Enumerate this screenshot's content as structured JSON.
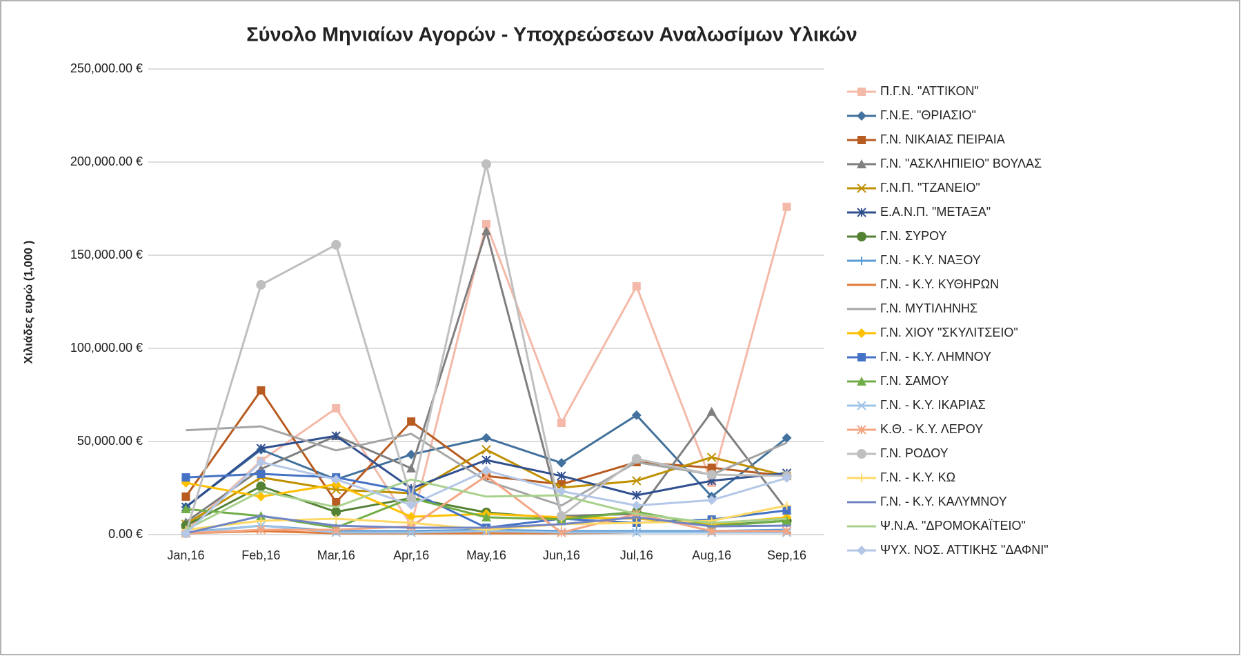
{
  "chart_data": {
    "type": "line",
    "title": "Σύνολο Μηνιαίων Αγορών - Υποχρεώσεων Αναλωσίμων Υλικών",
    "y_label": "Χιλιάδες ευρώ (1,000 )",
    "categories": [
      "Jan,16",
      "Feb,16",
      "Mar,16",
      "Apr,16",
      "May,16",
      "Jun,16",
      "Jul,16",
      "Aug,16",
      "Sep,16"
    ],
    "ylim": [
      0,
      250000
    ],
    "yticks": [
      {
        "value": 0,
        "label": "0.00 €"
      },
      {
        "value": 50000,
        "label": "50,000.00 €"
      },
      {
        "value": 100000,
        "label": "100,000.00 €"
      },
      {
        "value": 150000,
        "label": "150,000.00 €"
      },
      {
        "value": 200000,
        "label": "200,000.00 €"
      },
      {
        "value": 250000,
        "label": "250,000.00 €"
      }
    ],
    "grid": true,
    "legend": "right",
    "series": [
      {
        "name": "Π.Γ.Ν. \"ΑΤΤΙΚΟΝ\"",
        "color": "#f4b9a8",
        "marker": "square",
        "values": [
          2000,
          39600,
          67800,
          5000,
          166700,
          60000,
          133300,
          27800,
          176000
        ]
      },
      {
        "name": "Γ.Ν.Ε. \"ΘΡΙΑΣΙΟ\"",
        "color": "#41719c",
        "marker": "diamond",
        "values": [
          14800,
          45600,
          29600,
          43000,
          51900,
          38500,
          64100,
          20400,
          51900
        ]
      },
      {
        "name": "Γ.Ν. ΝΙΚΑΙΑΣ ΠΕΙΡΑΙΑ",
        "color": "#b85b20",
        "marker": "square",
        "values": [
          20400,
          77400,
          17400,
          60700,
          31500,
          27000,
          38900,
          35900,
          31500
        ]
      },
      {
        "name": "Γ.Ν. \"ΑΣΚΛΗΠΙΕΙΟ\" ΒΟΥΛΑΣ",
        "color": "#7f7f7f",
        "marker": "triangle",
        "values": [
          6700,
          35200,
          53000,
          35600,
          163000,
          10000,
          11100,
          66000,
          13000
        ]
      },
      {
        "name": "Γ.Ν.Π. \"ΤΖΑΝΕΙΟ\"",
        "color": "#bf9000",
        "marker": "x",
        "values": [
          5600,
          30700,
          24100,
          22200,
          45600,
          25200,
          28900,
          41500,
          31500
        ]
      },
      {
        "name": "Ε.Α.Ν.Π. \"ΜΕΤΑΞΑ\"",
        "color": "#2f4f8f",
        "marker": "star",
        "values": [
          14800,
          46300,
          53000,
          24800,
          40000,
          31500,
          21100,
          28900,
          33000
        ]
      },
      {
        "name": "Γ.Ν. ΣΥΡΟΥ",
        "color": "#548235",
        "marker": "circle",
        "values": [
          4800,
          25900,
          12200,
          19600,
          11900,
          8500,
          12200,
          4800,
          7400
        ]
      },
      {
        "name": "Γ.Ν. - Κ.Υ. ΝΑΞΟΥ",
        "color": "#5b9bd5",
        "marker": "plus",
        "values": [
          1100,
          4800,
          1900,
          1900,
          2600,
          1900,
          1900,
          1900,
          2600
        ]
      },
      {
        "name": "Γ.Ν. - Κ.Υ. ΚΥΘΗΡΩΝ",
        "color": "#e07b39",
        "marker": "dash",
        "values": [
          700,
          1900,
          700,
          700,
          700,
          700,
          1100,
          1100,
          1100
        ]
      },
      {
        "name": "Γ.Ν. ΜΥΤΙΛΗΝΗΣ",
        "color": "#a5a5a5",
        "marker": "none",
        "values": [
          56000,
          58100,
          45200,
          54100,
          28900,
          15600,
          38900,
          32200,
          49300
        ]
      },
      {
        "name": "Γ.Ν. ΧΙΟΥ \"ΣΚΥΛΙΤΣΕΙΟ\"",
        "color": "#ffc000",
        "marker": "diamond",
        "values": [
          27800,
          20400,
          27000,
          9600,
          11100,
          9300,
          8500,
          5600,
          9300
        ]
      },
      {
        "name": "Γ.Ν. - Κ.Υ. ΛΗΜΝΟΥ",
        "color": "#4472c4",
        "marker": "square",
        "values": [
          30700,
          32600,
          30700,
          23000,
          3700,
          8500,
          6300,
          8100,
          13000
        ]
      },
      {
        "name": "Γ.Ν. ΣΑΜΟΥ",
        "color": "#70ad47",
        "marker": "triangle",
        "values": [
          13700,
          10000,
          3700,
          19600,
          9300,
          8100,
          12200,
          4400,
          7400
        ]
      },
      {
        "name": "Γ.Ν. - Κ.Υ. ΙΚΑΡΙΑΣ",
        "color": "#9dc3e6",
        "marker": "x",
        "values": [
          700,
          4800,
          1100,
          1100,
          1900,
          1100,
          1100,
          1100,
          1100
        ]
      },
      {
        "name": "Κ.Θ. - Κ.Υ. ΛΕΡΟΥ",
        "color": "#f4a582",
        "marker": "star",
        "values": [
          700,
          2600,
          2600,
          4400,
          31500,
          1100,
          11100,
          1900,
          1900
        ]
      },
      {
        "name": "Γ.Ν. ΡΟΔΟΥ",
        "color": "#bfbfbf",
        "marker": "circle",
        "values": [
          700,
          134100,
          155600,
          19600,
          198900,
          10000,
          40700,
          32200,
          31500
        ]
      },
      {
        "name": "Γ.Ν. - Κ.Υ. ΚΩ",
        "color": "#ffd966",
        "marker": "plus",
        "values": [
          2600,
          7400,
          8500,
          6300,
          2600,
          5600,
          6300,
          7400,
          15600
        ]
      },
      {
        "name": "Γ.Ν. - Κ.Υ. ΚΑΛΥΜΝΟΥ",
        "color": "#7084c4",
        "marker": "dash",
        "values": [
          700,
          10000,
          4800,
          3700,
          3700,
          5600,
          9300,
          4400,
          4800
        ]
      },
      {
        "name": "Ψ.Ν.Α. \"ΔΡΟΜΟΚΑΪΤΕΙΟ\"",
        "color": "#a9d18e",
        "marker": "none",
        "values": [
          2600,
          23300,
          14800,
          29600,
          20400,
          21100,
          11100,
          6300,
          8500
        ]
      },
      {
        "name": "ΨΥΧ. ΝΟΣ. ΑΤΤΙΚΗΣ \"ΔΑΦΝΙ\"",
        "color": "#b4c7e7",
        "marker": "diamond",
        "values": [
          700,
          38900,
          29600,
          15900,
          34400,
          23300,
          15600,
          18500,
          30400
        ]
      }
    ]
  }
}
